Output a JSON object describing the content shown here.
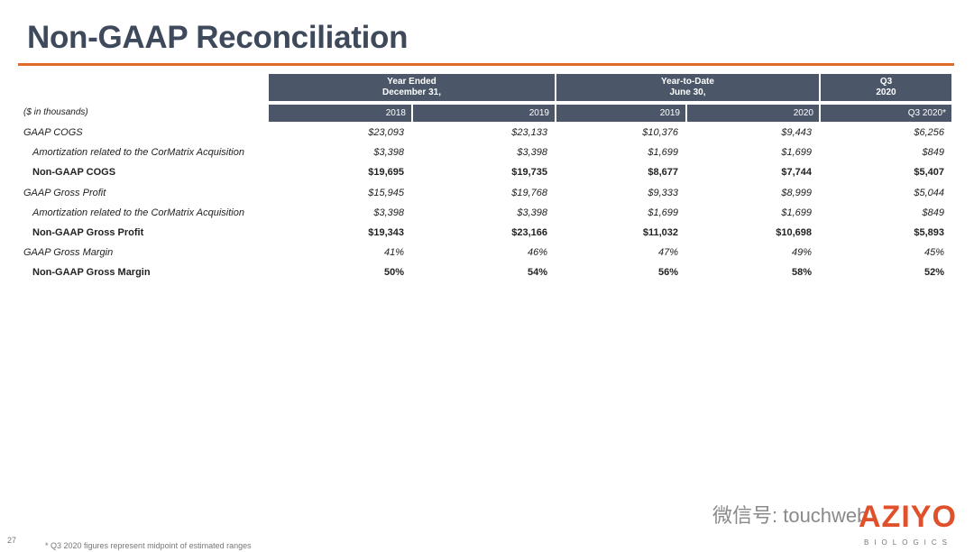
{
  "header": {
    "title": "Non-GAAP Reconciliation"
  },
  "table": {
    "groups": [
      [
        "Year Ended",
        "December 31,"
      ],
      [
        "Year-to-Date",
        "June 30,"
      ],
      [
        "Q3",
        "2020"
      ]
    ],
    "units": "($ in thousands)",
    "columns": [
      "2018",
      "2019",
      "2019",
      "2020",
      "Q3 2020*"
    ],
    "rows": [
      {
        "label": "GAAP COGS",
        "values": [
          "$23,093",
          "$23,133",
          "$10,376",
          "$9,443",
          "$6,256"
        ]
      },
      {
        "label": "Amortization related to the CorMatrix Acquisition",
        "values": [
          "$3,398",
          "$3,398",
          "$1,699",
          "$1,699",
          "$849"
        ]
      },
      {
        "label": "Non-GAAP COGS",
        "values": [
          "$19,695",
          "$19,735",
          "$8,677",
          "$7,744",
          "$5,407"
        ]
      },
      {
        "label": "GAAP Gross Profit",
        "values": [
          "$15,945",
          "$19,768",
          "$9,333",
          "$8,999",
          "$5,044"
        ]
      },
      {
        "label": "Amortization related to the CorMatrix Acquisition",
        "values": [
          "$3,398",
          "$3,398",
          "$1,699",
          "$1,699",
          "$849"
        ]
      },
      {
        "label": "Non-GAAP Gross Profit",
        "values": [
          "$19,343",
          "$23,166",
          "$11,032",
          "$10,698",
          "$5,893"
        ]
      },
      {
        "label": "GAAP Gross Margin",
        "values": [
          "41%",
          "46%",
          "47%",
          "49%",
          "45%"
        ]
      },
      {
        "label": "Non-GAAP Gross Margin",
        "values": [
          "50%",
          "54%",
          "56%",
          "58%",
          "52%"
        ]
      }
    ]
  },
  "footnote": "* Q3 2020 figures represent midpoint of estimated ranges",
  "page_number": "27",
  "watermark": "微信号: touchweb",
  "logo": {
    "name": "AZIYO",
    "tagline": "BIOLOGICS"
  }
}
